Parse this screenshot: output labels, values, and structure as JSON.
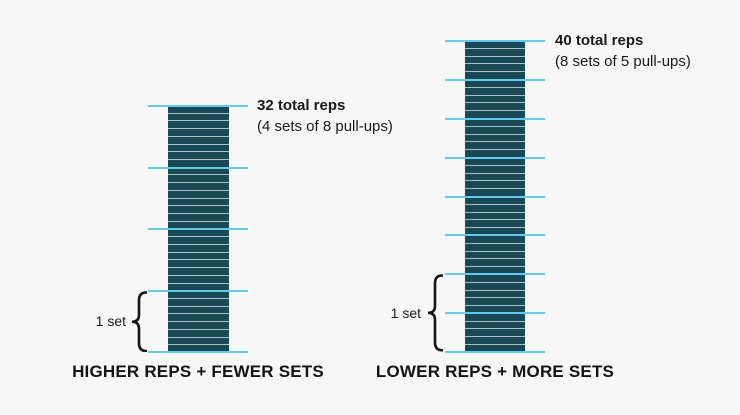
{
  "chart_data": {
    "type": "bar",
    "description": "Infographic comparing pull-up workout structures: two stacked columns of rep segments divided into sets by horizontal lines",
    "columns": [
      {
        "caption": "HIGHER REPS + FEWER SETS",
        "total_reps": 32,
        "sets": 4,
        "reps_per_set": 8,
        "annotation_line1": "32 total reps",
        "annotation_line2": "(4 sets of 8 pull-ups)",
        "set_label": "1 set"
      },
      {
        "caption": "LOWER REPS + MORE SETS",
        "total_reps": 40,
        "sets": 8,
        "reps_per_set": 5,
        "annotation_line1": "40 total reps",
        "annotation_line2": "(8 sets of 5 pull-ups)",
        "set_label": "1 set"
      }
    ],
    "colors": {
      "bar_fill": "#194855",
      "rep_separator": "#a9c0c8",
      "set_line": "#64cbee",
      "text": "#1a1a1a",
      "background": "#f7f7f7"
    },
    "legend": "none",
    "grid": "off"
  }
}
